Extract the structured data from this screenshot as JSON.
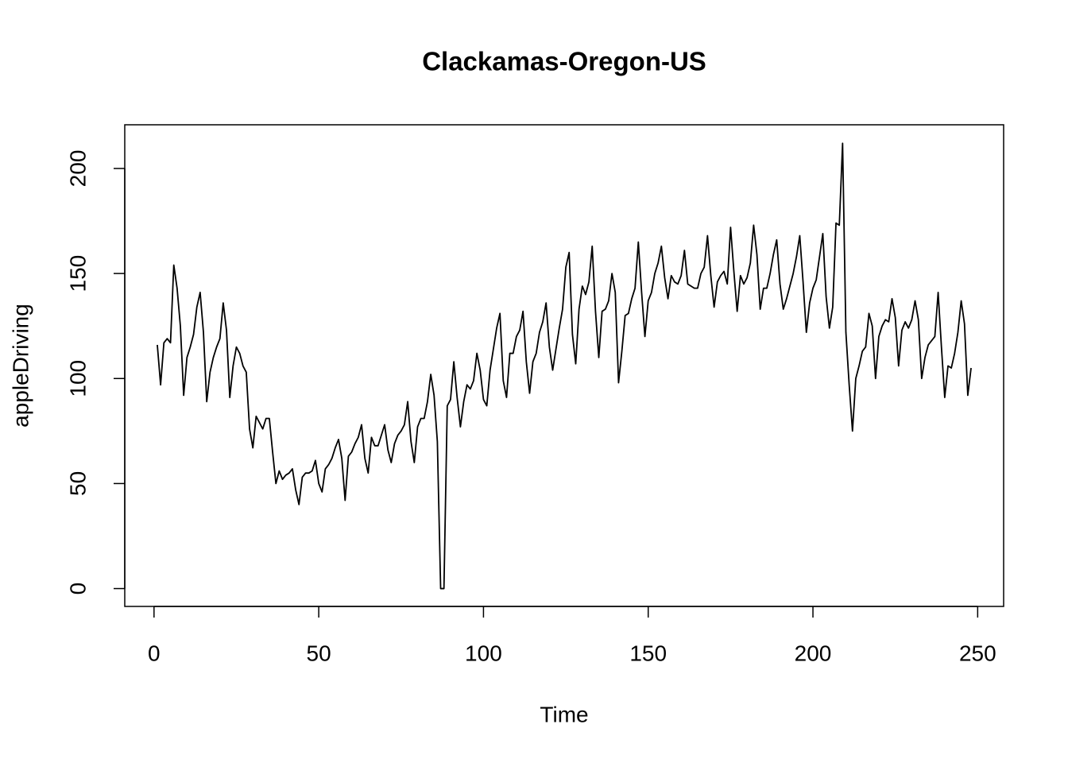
{
  "chart_data": {
    "type": "line",
    "title": "Clackamas-Oregon-US",
    "xlabel": "Time",
    "ylabel": "appleDriving",
    "color": "#000000",
    "xlim": [
      -8.88,
      257.88
    ],
    "ylim": [
      -8.5,
      220.8
    ],
    "xticks": [
      0,
      50,
      100,
      150,
      200,
      250
    ],
    "yticks": [
      0,
      50,
      100,
      150,
      200
    ],
    "x": [
      1,
      2,
      3,
      4,
      5,
      6,
      7,
      8,
      9,
      10,
      11,
      12,
      13,
      14,
      15,
      16,
      17,
      18,
      19,
      20,
      21,
      22,
      23,
      24,
      25,
      26,
      27,
      28,
      29,
      30,
      31,
      32,
      33,
      34,
      35,
      36,
      37,
      38,
      39,
      40,
      41,
      42,
      43,
      44,
      45,
      46,
      47,
      48,
      49,
      50,
      51,
      52,
      53,
      54,
      55,
      56,
      57,
      58,
      59,
      60,
      61,
      62,
      63,
      64,
      65,
      66,
      67,
      68,
      69,
      70,
      71,
      72,
      73,
      74,
      75,
      76,
      77,
      78,
      79,
      80,
      81,
      82,
      83,
      84,
      85,
      86,
      87,
      88,
      89,
      90,
      91,
      92,
      93,
      94,
      95,
      96,
      97,
      98,
      99,
      100,
      101,
      102,
      103,
      104,
      105,
      106,
      107,
      108,
      109,
      110,
      111,
      112,
      113,
      114,
      115,
      116,
      117,
      118,
      119,
      120,
      121,
      122,
      123,
      124,
      125,
      126,
      127,
      128,
      129,
      130,
      131,
      132,
      133,
      134,
      135,
      136,
      137,
      138,
      139,
      140,
      141,
      142,
      143,
      144,
      145,
      146,
      147,
      148,
      149,
      150,
      151,
      152,
      153,
      154,
      155,
      156,
      157,
      158,
      159,
      160,
      161,
      162,
      163,
      164,
      165,
      166,
      167,
      168,
      169,
      170,
      171,
      172,
      173,
      174,
      175,
      176,
      177,
      178,
      179,
      180,
      181,
      182,
      183,
      184,
      185,
      186,
      187,
      188,
      189,
      190,
      191,
      192,
      193,
      194,
      195,
      196,
      197,
      198,
      199,
      200,
      201,
      202,
      203,
      204,
      205,
      206,
      207,
      208,
      209,
      210,
      211,
      212,
      213,
      214,
      215,
      216,
      217,
      218,
      219,
      220,
      221,
      222,
      223,
      224,
      225,
      226,
      227,
      228,
      229,
      230,
      231,
      232,
      233,
      234,
      235,
      236,
      237,
      238,
      239,
      240,
      241,
      242,
      243,
      244,
      245,
      246,
      247,
      248
    ],
    "values": [
      116,
      97,
      117,
      119,
      117,
      154,
      143,
      125,
      92,
      110,
      115,
      121,
      134,
      141,
      122,
      89,
      103,
      110,
      115,
      119,
      136,
      123,
      91,
      106,
      115,
      112,
      106,
      103,
      76,
      67,
      82,
      79,
      76,
      81,
      81,
      65,
      50,
      56,
      52,
      54,
      55,
      57,
      47,
      40,
      53,
      55,
      55,
      56,
      61,
      50,
      46,
      57,
      59,
      62,
      67,
      71,
      62,
      42,
      63,
      65,
      69,
      72,
      78,
      62,
      55,
      72,
      68,
      68,
      73,
      78,
      66,
      60,
      69,
      73,
      75,
      78,
      89,
      70,
      60,
      77,
      81,
      81,
      89,
      102,
      92,
      70,
      0,
      0,
      87,
      90,
      108,
      91,
      77,
      89,
      97,
      95,
      99,
      112,
      104,
      90,
      87,
      104,
      114,
      124,
      131,
      99,
      91,
      112,
      112,
      120,
      123,
      132,
      108,
      93,
      108,
      112,
      122,
      127,
      136,
      115,
      104,
      114,
      124,
      133,
      153,
      160,
      121,
      107,
      133,
      144,
      140,
      146,
      163,
      132,
      110,
      132,
      133,
      137,
      150,
      141,
      98,
      113,
      130,
      131,
      138,
      143,
      165,
      141,
      120,
      137,
      141,
      150,
      155,
      163,
      148,
      138,
      149,
      146,
      145,
      149,
      161,
      145,
      144,
      143,
      143,
      150,
      153,
      168,
      149,
      134,
      146,
      149,
      151,
      145,
      172,
      151,
      132,
      149,
      145,
      148,
      155,
      173,
      159,
      133,
      143,
      143,
      150,
      159,
      166,
      145,
      133,
      138,
      144,
      150,
      158,
      168,
      146,
      122,
      136,
      143,
      147,
      158,
      169,
      139,
      124,
      134,
      174,
      173,
      212,
      122,
      97,
      75,
      100,
      106,
      113,
      115,
      131,
      125,
      100,
      120,
      125,
      128,
      127,
      138,
      129,
      106,
      123,
      127,
      124,
      128,
      137,
      128,
      100,
      110,
      116,
      118,
      120,
      141,
      115,
      91,
      106,
      105,
      112,
      122,
      137,
      126,
      92,
      105
    ]
  }
}
